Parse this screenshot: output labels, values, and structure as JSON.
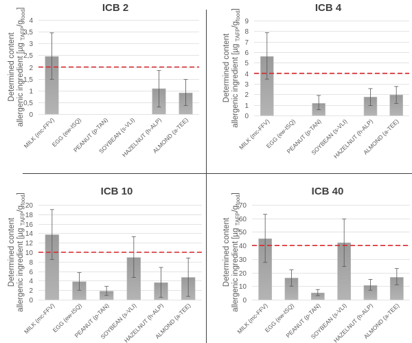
{
  "colors": {
    "bar": "#a6a6a6",
    "bar_edge": "#bdbdbd",
    "threshold": "#d9262b",
    "grid": "#e3e3e3",
    "error_bar": "#555555",
    "divider": "#404040"
  },
  "y_axis_label": {
    "line1": "Determined content",
    "line2_prefix": "allergenic ingredient [µg",
    "sub1": "TAFP",
    "mid": "/g",
    "sub2": "food",
    "suffix": "]"
  },
  "chart_data": [
    {
      "type": "bar",
      "title": "ICB 2",
      "categories": [
        "MILK (mc-FFV)",
        "EGG (ew-ISQ)",
        "PEANUT (p-TAN)",
        "SOYBEAN (s-VLI)",
        "HAZELNUT (h-ALP)",
        "ALMOND (a-TEE)"
      ],
      "values": [
        2.45,
        null,
        null,
        null,
        1.08,
        0.9
      ],
      "error_low": [
        1.48,
        null,
        null,
        null,
        0.3,
        0.37
      ],
      "error_high": [
        3.45,
        null,
        null,
        null,
        1.85,
        1.47
      ],
      "threshold": 2,
      "ylim": [
        0,
        4
      ],
      "yticks": [
        "0",
        "0,5",
        "1",
        "1,5",
        "2",
        "2,5",
        "3",
        "3,5",
        "4"
      ],
      "grid": true
    },
    {
      "type": "bar",
      "title": "ICB 4",
      "categories": [
        "MILK (mc-FFV)",
        "EGG (ew-ISQ)",
        "PEANUT (p-TAN)",
        "SOYBEAN (s-VLI)",
        "HAZELNUT (h-ALP)",
        "ALMOND (a-TEE)"
      ],
      "values": [
        5.6,
        null,
        1.15,
        null,
        1.75,
        1.95
      ],
      "error_low": [
        3.45,
        null,
        0.55,
        null,
        0.95,
        1.15
      ],
      "error_high": [
        7.85,
        null,
        1.9,
        null,
        2.55,
        2.75
      ],
      "threshold": 4,
      "ylim": [
        0,
        9
      ],
      "yticks": [
        "0",
        "1",
        "2",
        "3",
        "4",
        "5",
        "6",
        "7",
        "8",
        "9"
      ],
      "grid": true
    },
    {
      "type": "bar",
      "title": "ICB 10",
      "categories": [
        "MILK (mc-FFV)",
        "EGG (ew-ISQ)",
        "PEANUT (p-TAN)",
        "SOYBEAN (s-VLI)",
        "HAZELNUT (h-ALP)",
        "ALMOND (a-TEE)"
      ],
      "values": [
        13.7,
        3.8,
        1.8,
        8.9,
        3.6,
        4.7
      ],
      "error_low": [
        8.5,
        2.0,
        0.9,
        4.7,
        0.5,
        0.7
      ],
      "error_high": [
        19.0,
        5.7,
        2.8,
        13.3,
        6.8,
        8.8
      ],
      "threshold": 10,
      "ylim": [
        0,
        20
      ],
      "yticks": [
        "0",
        "2",
        "4",
        "6",
        "8",
        "10",
        "12",
        "14",
        "16",
        "18",
        "20"
      ],
      "grid": true
    },
    {
      "type": "bar",
      "title": "ICB 40",
      "categories": [
        "MILK (mc-FFV)",
        "EGG (ew-ISQ)",
        "PEANUT (p-TAN)",
        "SOYBEAN (s-VLI)",
        "HAZELNUT (h-ALP)",
        "ALMOND (a-TEE)"
      ],
      "values": [
        45,
        16,
        5,
        42,
        10.5,
        16.5
      ],
      "error_low": [
        27.5,
        10,
        3,
        24.5,
        7,
        11
      ],
      "error_high": [
        63,
        22,
        7.5,
        59.5,
        15,
        23
      ],
      "threshold": 40,
      "ylim": [
        0,
        70
      ],
      "yticks": [
        "0",
        "10",
        "20",
        "30",
        "40",
        "50",
        "60",
        "70"
      ],
      "grid": true
    }
  ]
}
